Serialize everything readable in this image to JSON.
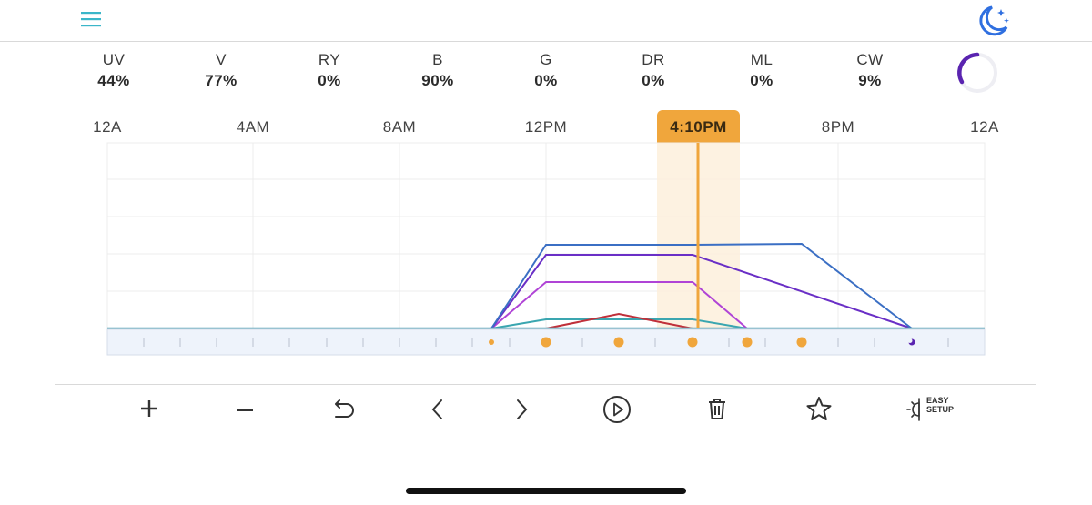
{
  "channels": [
    {
      "name": "UV",
      "value": "44%"
    },
    {
      "name": "V",
      "value": "77%"
    },
    {
      "name": "RY",
      "value": "0%"
    },
    {
      "name": "B",
      "value": "90%"
    },
    {
      "name": "G",
      "value": "0%"
    },
    {
      "name": "DR",
      "value": "0%"
    },
    {
      "name": "ML",
      "value": "0%"
    },
    {
      "name": "CW",
      "value": "9%"
    }
  ],
  "timeline": {
    "labels": [
      "12A",
      "4AM",
      "8AM",
      "12PM",
      "8PM",
      "12A"
    ],
    "current_time": "4:10PM"
  },
  "toolbar": {
    "easy_setup_line1": "EASY",
    "easy_setup_line2": "SETUP"
  },
  "colors": {
    "accent": "#f0a63c",
    "blue": "#3b6fc4",
    "violet": "#6a2fc6",
    "purple": "#b044d6",
    "red": "#c0303a",
    "teal": "#3aa6b0",
    "icon_blue": "#2f6fe0",
    "menu_teal": "#3bb6c9",
    "ring": "#5a24b0"
  }
}
